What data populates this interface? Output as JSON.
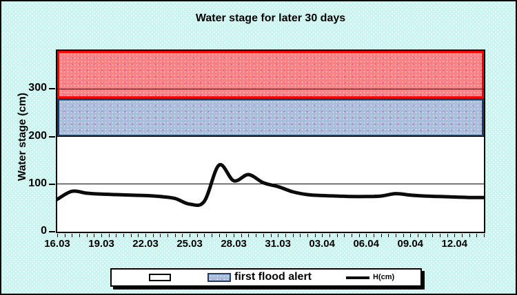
{
  "title": "Water stage for later 30 days",
  "y_axis": {
    "label": "Water stage (cm)",
    "ticks": [
      0,
      100,
      200,
      300
    ]
  },
  "x_axis": {
    "tick_labels": [
      "16.03",
      "19.03",
      "22.03",
      "25.03",
      "28.03",
      "31.03",
      "03.04",
      "06.04",
      "09.04",
      "12.04"
    ]
  },
  "legend": {
    "items": [
      {
        "label": "",
        "swatch": "empty-white-box"
      },
      {
        "label": "first flood alert",
        "swatch": "blue-dotted-box"
      },
      {
        "label": "H(cm)",
        "swatch": "black-line"
      }
    ]
  },
  "colors": {
    "background": "#c9f4ef",
    "plot_background": "#ffffff",
    "frame_border": "#000000",
    "flood_band_fill": "#f88183",
    "flood_band_border": "#fa0200",
    "first_alert_fill": "#a9bedb",
    "first_alert_border": "#1d3d67",
    "line_color": "#0b0b0b",
    "gridline_color": "#000000"
  },
  "chart_data": {
    "type": "line",
    "title": "Water stage for later 30 days",
    "xlabel": "",
    "ylabel": "Water stage (cm)",
    "ylim": [
      0,
      380
    ],
    "grid": true,
    "gridlines": [
      100,
      200,
      300
    ],
    "legend_position": "bottom",
    "x": [
      "16.03",
      "17.03",
      "18.03",
      "19.03",
      "20.03",
      "21.03",
      "22.03",
      "23.03",
      "24.03",
      "25.03",
      "26.03",
      "27.03",
      "28.03",
      "29.03",
      "30.03",
      "31.03",
      "01.04",
      "02.04",
      "03.04",
      "04.04",
      "05.04",
      "06.04",
      "07.04",
      "08.04",
      "09.04",
      "10.04",
      "11.04",
      "12.04",
      "13.04",
      "14.04"
    ],
    "x_major_tick_step_days": 3,
    "x_minor_tick_step_days": 0.5,
    "series": [
      {
        "name": "H(cm)",
        "values": [
          68,
          85,
          81,
          79,
          78,
          77,
          76,
          74,
          70,
          58,
          64,
          140,
          107,
          120,
          103,
          95,
          84,
          78,
          76,
          75,
          74,
          74,
          75,
          80,
          77,
          75,
          74,
          73,
          72,
          72
        ]
      }
    ],
    "bands": [
      {
        "name": "",
        "from": 280,
        "to": 380,
        "fill": "#f88183",
        "border": "#fa0200"
      },
      {
        "name": "first flood alert",
        "from": 200,
        "to": 280,
        "fill": "#a9bedb",
        "border": "#1d3d67"
      }
    ]
  }
}
